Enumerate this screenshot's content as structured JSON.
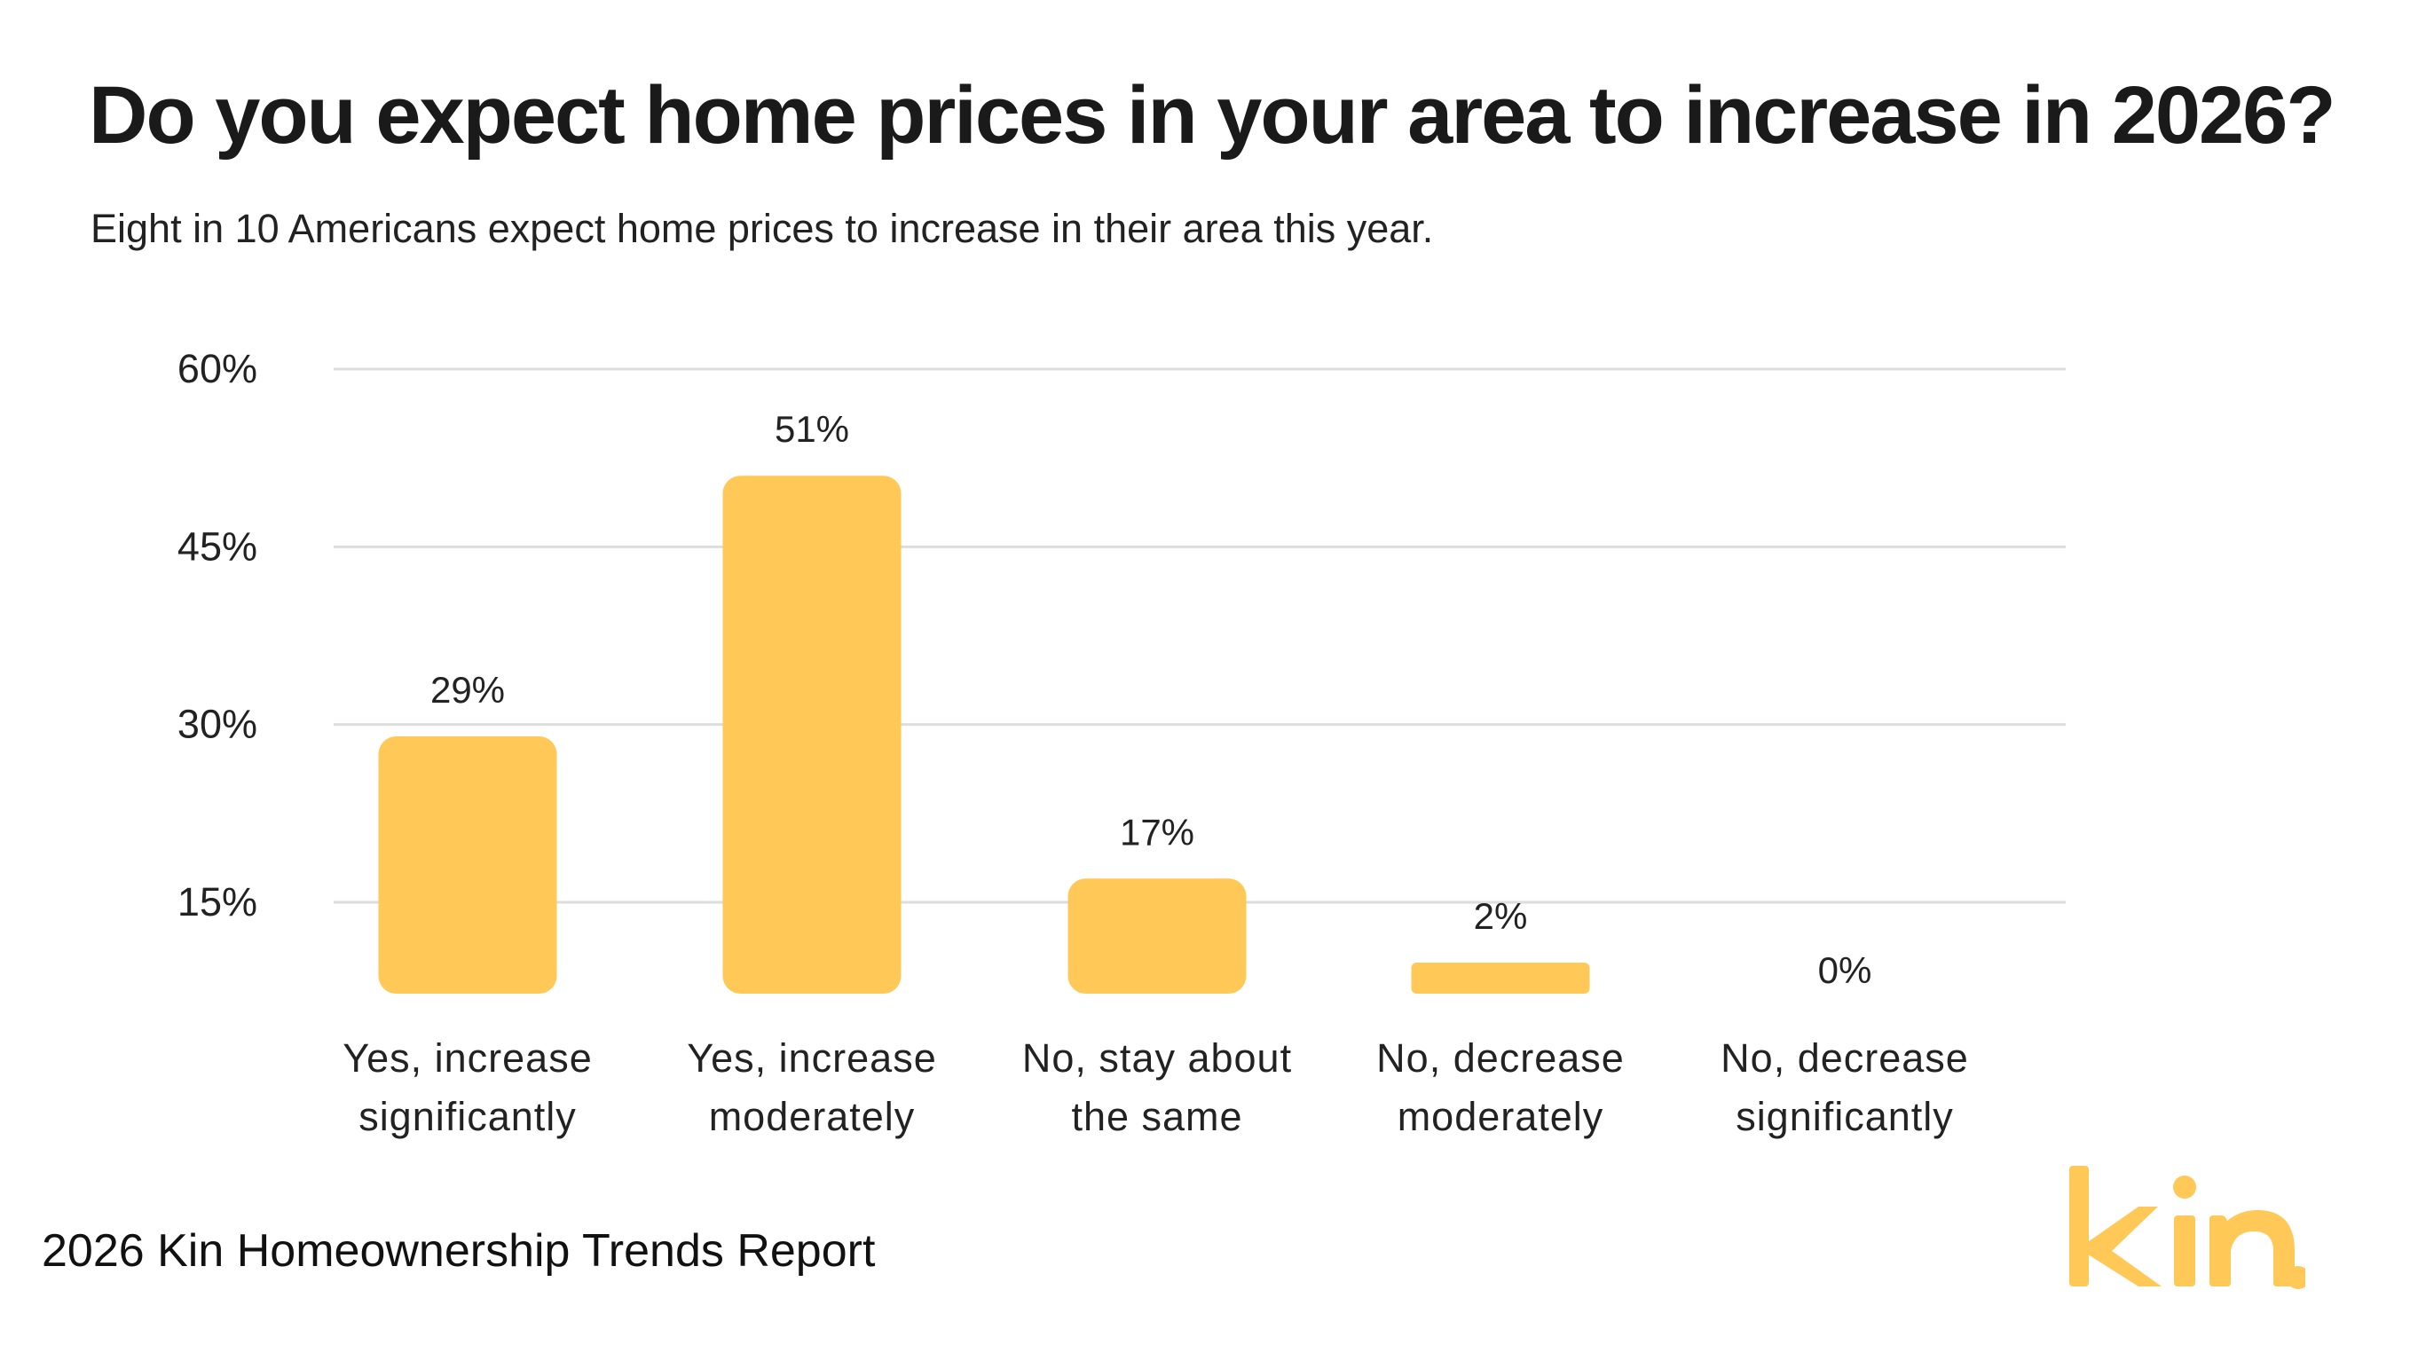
{
  "title": "Do you expect home prices in your area to increase in 2026?",
  "subtitle": "Eight in 10 Americans expect home prices to increase in their area this year.",
  "footer": "2026 Kin Homeownership Trends Report",
  "logo_text": "kin.",
  "colors": {
    "bar": "#FFC857",
    "grid": "#DDDDDD",
    "logo": "#FFC857"
  },
  "chart_data": {
    "type": "bar",
    "categories": [
      [
        "Yes, increase",
        "significantly"
      ],
      [
        "Yes, increase",
        "moderately"
      ],
      [
        "No, stay about",
        "the same"
      ],
      [
        "No, decrease",
        "moderately"
      ],
      [
        "No, decrease",
        "significantly"
      ]
    ],
    "values": [
      29,
      51,
      17,
      2,
      0
    ],
    "data_labels": [
      "29%",
      "51%",
      "17%",
      "2%",
      "0%"
    ],
    "yticks": [
      15,
      30,
      45,
      60
    ],
    "ytick_labels": [
      "15%",
      "30%",
      "45%",
      "60%"
    ],
    "ylim": [
      0,
      60
    ],
    "grid": true
  }
}
